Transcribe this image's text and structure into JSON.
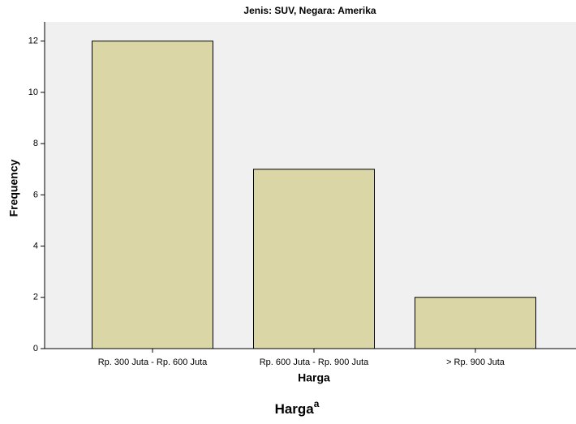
{
  "chart_data": {
    "type": "bar",
    "title": "Jenis: SUV, Negara: Amerika",
    "categories": [
      "Rp. 300 Juta - Rp. 600 Juta",
      "Rp. 600 Juta - Rp. 900 Juta",
      "> Rp. 900 Juta"
    ],
    "values": [
      12,
      7,
      2
    ],
    "color": "#dad6a6",
    "x_label": "Harga",
    "y_label": "Frequency",
    "ylim": [
      0,
      12.75
    ],
    "yticks": [
      0,
      2,
      4,
      6,
      8,
      10,
      12
    ],
    "grid": false
  },
  "footer": {
    "text": "Harga",
    "superscript": "a"
  }
}
